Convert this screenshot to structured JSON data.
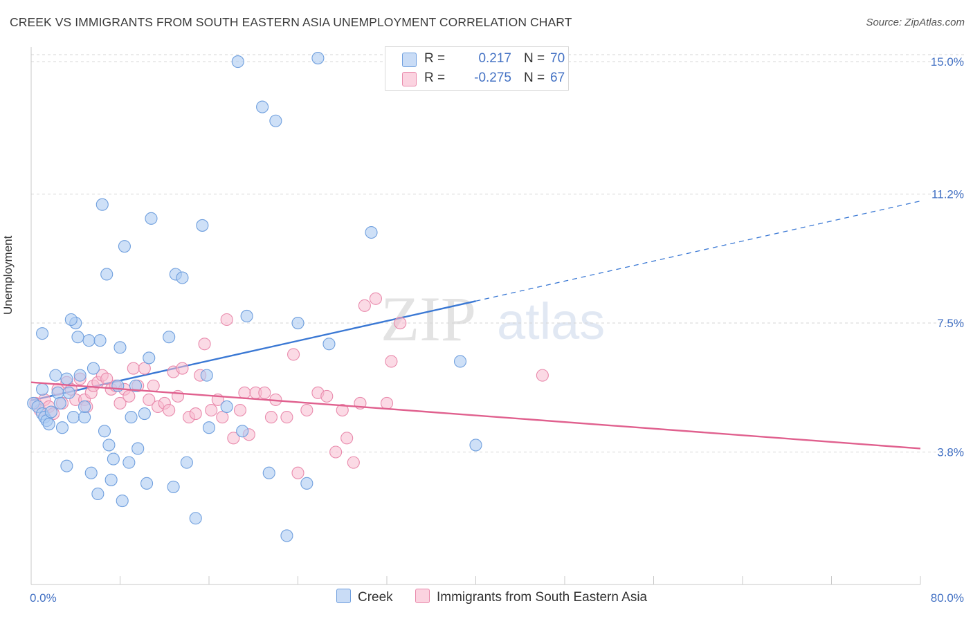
{
  "title": "CREEK VS IMMIGRANTS FROM SOUTH EASTERN ASIA UNEMPLOYMENT CORRELATION CHART",
  "source": "Source: ZipAtlas.com",
  "watermark": {
    "zip": "ZIP",
    "atlas": "atlas"
  },
  "legend_top": [
    {
      "r_label": "R =",
      "r_value": "0.217",
      "n_label": "N =",
      "n_value": "70"
    },
    {
      "r_label": "R =",
      "r_value": "-0.275",
      "n_label": "N =",
      "n_value": "67"
    }
  ],
  "legend_bottom": [
    "Creek",
    "Immigrants from South Eastern Asia"
  ],
  "colors": {
    "creek_fill": "#aecbf2",
    "creek_stroke": "#6f9fde",
    "creek_line": "#3a78d4",
    "imm_fill": "#f7bcd0",
    "imm_stroke": "#e98aac",
    "imm_line": "#e0608e",
    "tick_text": "#4472c4",
    "grid": "#d5d5d5"
  },
  "chart_data": {
    "type": "scatter",
    "title": "CREEK VS IMMIGRANTS FROM SOUTH EASTERN ASIA UNEMPLOYMENT CORRELATION CHART",
    "xlabel": "",
    "ylabel": "Unemployment",
    "xlim": [
      0,
      80
    ],
    "ylim": [
      0,
      15.2
    ],
    "x_tick_labels": [
      "0.0%",
      "80.0%"
    ],
    "y_ticks": [
      3.8,
      7.5,
      11.2,
      15.0
    ],
    "y_tick_labels": [
      "3.8%",
      "7.5%",
      "11.2%",
      "15.0%"
    ],
    "grid": "horizontal dashed",
    "legend_position": "top-center and bottom",
    "series": [
      {
        "name": "Creek",
        "r": 0.217,
        "n": 70,
        "trend": {
          "x_solid": [
            0,
            40
          ],
          "y_solid": [
            5.28,
            8.13
          ],
          "x_dashed": [
            40,
            80
          ],
          "y_dashed": [
            8.13,
            11.0
          ]
        },
        "points": [
          [
            0.2,
            5.2
          ],
          [
            0.6,
            5.1
          ],
          [
            1.0,
            4.9
          ],
          [
            1.2,
            4.8
          ],
          [
            1.4,
            4.7
          ],
          [
            1.6,
            4.6
          ],
          [
            1.8,
            4.95
          ],
          [
            2.2,
            6.0
          ],
          [
            2.4,
            5.5
          ],
          [
            2.8,
            4.5
          ],
          [
            3.2,
            5.9
          ],
          [
            3.4,
            5.5
          ],
          [
            3.2,
            3.4
          ],
          [
            3.8,
            4.8
          ],
          [
            4.0,
            7.5
          ],
          [
            4.2,
            7.1
          ],
          [
            4.4,
            6.0
          ],
          [
            4.8,
            4.8
          ],
          [
            4.8,
            5.1
          ],
          [
            5.2,
            7.0
          ],
          [
            5.4,
            3.2
          ],
          [
            5.6,
            6.2
          ],
          [
            6.0,
            2.6
          ],
          [
            6.2,
            7.0
          ],
          [
            6.4,
            10.9
          ],
          [
            6.6,
            4.4
          ],
          [
            6.8,
            8.9
          ],
          [
            7.0,
            4.0
          ],
          [
            7.2,
            3.0
          ],
          [
            7.4,
            3.6
          ],
          [
            7.8,
            5.7
          ],
          [
            8.0,
            6.8
          ],
          [
            8.2,
            2.4
          ],
          [
            8.4,
            9.7
          ],
          [
            8.8,
            3.5
          ],
          [
            9.0,
            4.8
          ],
          [
            9.4,
            5.7
          ],
          [
            9.6,
            3.9
          ],
          [
            10.2,
            4.9
          ],
          [
            10.4,
            2.9
          ],
          [
            10.6,
            6.5
          ],
          [
            10.8,
            10.5
          ],
          [
            12.4,
            7.1
          ],
          [
            12.8,
            2.8
          ],
          [
            13.0,
            8.9
          ],
          [
            13.6,
            8.8
          ],
          [
            14.0,
            3.5
          ],
          [
            14.8,
            1.9
          ],
          [
            15.4,
            10.3
          ],
          [
            15.8,
            6.0
          ],
          [
            16.0,
            4.5
          ],
          [
            17.6,
            5.1
          ],
          [
            18.6,
            15.0
          ],
          [
            19.0,
            4.4
          ],
          [
            19.4,
            7.7
          ],
          [
            20.8,
            13.7
          ],
          [
            21.4,
            3.2
          ],
          [
            22.0,
            13.3
          ],
          [
            23.0,
            1.4
          ],
          [
            24.0,
            7.5
          ],
          [
            24.8,
            2.9
          ],
          [
            25.8,
            15.1
          ],
          [
            26.8,
            6.9
          ],
          [
            30.6,
            10.1
          ],
          [
            38.6,
            6.4
          ],
          [
            40.0,
            4.0
          ],
          [
            1.0,
            7.2
          ],
          [
            3.6,
            7.6
          ],
          [
            1.0,
            5.6
          ],
          [
            2.6,
            5.2
          ]
        ]
      },
      {
        "name": "Immigrants from South Eastern Asia",
        "r": -0.275,
        "n": 67,
        "trend": {
          "x_solid": [
            0,
            80
          ],
          "y_solid": [
            5.8,
            3.9
          ]
        },
        "points": [
          [
            0.4,
            5.2
          ],
          [
            0.8,
            5.0
          ],
          [
            1.2,
            5.3
          ],
          [
            1.6,
            5.1
          ],
          [
            2.0,
            4.9
          ],
          [
            2.4,
            5.6
          ],
          [
            2.8,
            5.2
          ],
          [
            3.2,
            5.8
          ],
          [
            3.6,
            5.6
          ],
          [
            4.0,
            5.3
          ],
          [
            4.4,
            5.9
          ],
          [
            4.8,
            5.3
          ],
          [
            5.0,
            5.1
          ],
          [
            5.4,
            5.5
          ],
          [
            5.6,
            5.7
          ],
          [
            6.0,
            5.8
          ],
          [
            6.4,
            6.0
          ],
          [
            6.8,
            5.9
          ],
          [
            7.2,
            5.6
          ],
          [
            7.6,
            5.7
          ],
          [
            8.0,
            5.2
          ],
          [
            8.4,
            5.6
          ],
          [
            8.8,
            5.4
          ],
          [
            9.2,
            6.2
          ],
          [
            9.6,
            5.7
          ],
          [
            10.2,
            6.2
          ],
          [
            10.6,
            5.3
          ],
          [
            11.0,
            5.7
          ],
          [
            11.4,
            5.1
          ],
          [
            12.0,
            5.2
          ],
          [
            12.4,
            5.0
          ],
          [
            12.8,
            6.1
          ],
          [
            13.2,
            5.4
          ],
          [
            13.6,
            6.2
          ],
          [
            14.2,
            4.8
          ],
          [
            14.8,
            4.9
          ],
          [
            15.2,
            6.0
          ],
          [
            15.6,
            6.9
          ],
          [
            16.2,
            5.0
          ],
          [
            16.8,
            5.3
          ],
          [
            17.2,
            4.8
          ],
          [
            17.6,
            7.6
          ],
          [
            18.2,
            4.2
          ],
          [
            18.8,
            5.0
          ],
          [
            19.2,
            5.5
          ],
          [
            19.6,
            4.3
          ],
          [
            20.2,
            5.5
          ],
          [
            21.0,
            5.5
          ],
          [
            21.6,
            4.8
          ],
          [
            22.0,
            5.3
          ],
          [
            23.0,
            4.8
          ],
          [
            23.6,
            6.6
          ],
          [
            24.0,
            3.2
          ],
          [
            24.8,
            5.0
          ],
          [
            25.8,
            5.5
          ],
          [
            26.6,
            5.4
          ],
          [
            27.4,
            3.8
          ],
          [
            28.0,
            5.0
          ],
          [
            28.4,
            4.2
          ],
          [
            29.0,
            3.5
          ],
          [
            29.6,
            5.2
          ],
          [
            30.0,
            8.0
          ],
          [
            31.0,
            8.2
          ],
          [
            32.0,
            5.2
          ],
          [
            32.4,
            6.4
          ],
          [
            33.2,
            7.5
          ],
          [
            46.0,
            6.0
          ]
        ]
      }
    ]
  }
}
